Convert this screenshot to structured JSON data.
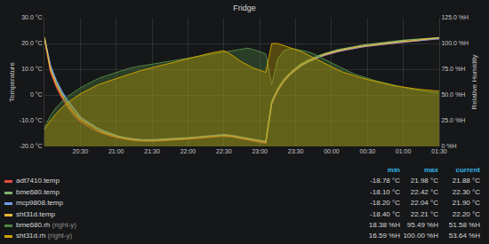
{
  "chart_data": {
    "type": "line",
    "title": "Fridge",
    "y_label": "Temperature",
    "y2_label": "Relative Humidity",
    "grid": true,
    "legend": "bottom",
    "legend_columns": [
      "min",
      "max",
      "current"
    ],
    "legend_y2_label": "(right-y)",
    "categories": [
      null,
      null,
      null,
      null,
      null,
      null,
      "20:30",
      null,
      null,
      null,
      null,
      null,
      "21:00",
      null,
      null,
      null,
      null,
      null,
      "21:30",
      null,
      null,
      null,
      null,
      null,
      "22:00",
      null,
      null,
      null,
      null,
      null,
      "22:30",
      null,
      null,
      null,
      null,
      null,
      "23:00",
      null,
      null,
      null,
      null,
      null,
      "23:30",
      null,
      null,
      null,
      null,
      null,
      "00:00",
      null,
      null,
      null,
      null,
      null,
      "00:30",
      null,
      null,
      null,
      null,
      null,
      "01:00",
      null,
      null,
      null,
      null,
      null,
      "01:30"
    ],
    "ylim": [
      -20,
      30
    ],
    "yticks": [
      {
        "value": -20,
        "label": "-20.0 °C"
      },
      {
        "value": -10,
        "label": "-10.0 °C"
      },
      {
        "value": 0,
        "label": "0 °C"
      },
      {
        "value": 10,
        "label": "10.0 °C"
      },
      {
        "value": 20,
        "label": "20.0 °C"
      },
      {
        "value": 30,
        "label": "30.0 °C"
      }
    ],
    "y2lim": [
      0,
      125
    ],
    "y2ticks": [
      {
        "value": 0,
        "label": "0 %H"
      },
      {
        "value": 25,
        "label": "25.0 %H"
      },
      {
        "value": 50,
        "label": "50.0 %H"
      },
      {
        "value": 75,
        "label": "75.0 %H"
      },
      {
        "value": 100,
        "label": "100.0 %H"
      },
      {
        "value": 125,
        "label": "125.0 %H"
      }
    ],
    "series": [
      {
        "name": "bme680.rh",
        "color": "#508642",
        "axis": "y2",
        "type": "area",
        "legend_order": 5,
        "stats": [
          "18.38 %H",
          "95.49 %H",
          "51.58 %H"
        ],
        "values": [
          18.38,
          30,
          38,
          44,
          49,
          53,
          57,
          60,
          63,
          66,
          68,
          70,
          72,
          74,
          75.5,
          77,
          78,
          79,
          80,
          81,
          82,
          83,
          84,
          85,
          86,
          87,
          88,
          89,
          90,
          91,
          92,
          93,
          94,
          95,
          95.49,
          94,
          92,
          90,
          60,
          85,
          93,
          95,
          94.5,
          93.5,
          92,
          90,
          87,
          84,
          81,
          78,
          75,
          72.5,
          70,
          68,
          66,
          64.5,
          63,
          61.5,
          60,
          58.5,
          57,
          56,
          55,
          54,
          53,
          52.3,
          51.58
        ]
      },
      {
        "name": "sht31d.rh",
        "color": "#cca300",
        "axis": "y2",
        "type": "area",
        "legend_order": 6,
        "stats": [
          "16.59 %H",
          "100.00 %H",
          "53.64 %H"
        ],
        "values": [
          16.59,
          25,
          32,
          38,
          43,
          47,
          51,
          54,
          57,
          60,
          62,
          64,
          66,
          68,
          70,
          72,
          73.5,
          75,
          76.5,
          78,
          79.5,
          81,
          82.5,
          84,
          85.5,
          87,
          88.5,
          90,
          91,
          92,
          93,
          90,
          86,
          82,
          79,
          76,
          74,
          72,
          100,
          100,
          98,
          96,
          94,
          92,
          89,
          86,
          83,
          80,
          77,
          74.5,
          72,
          70,
          68,
          66.5,
          65,
          63.5,
          62,
          60.5,
          59.5,
          58.5,
          57.5,
          56.8,
          56,
          55.3,
          54.7,
          54.1,
          53.64
        ]
      },
      {
        "name": "adt7410.temp",
        "color": "#e24d42",
        "type": "line",
        "legend_order": 1,
        "stats": [
          "-18.78 °C",
          "21.98 °C",
          "21.88 °C"
        ],
        "values": [
          21.98,
          9,
          3,
          -1.5,
          -5,
          -8,
          -10.3,
          -11.8,
          -13.2,
          -14.3,
          -15.2,
          -15.9,
          -16.5,
          -17,
          -17.4,
          -17.7,
          -17.9,
          -18,
          -18,
          -17.9,
          -17.8,
          -17.7,
          -17.6,
          -17.4,
          -17.2,
          -17,
          -16.8,
          -16.6,
          -16.4,
          -16.2,
          -16,
          -16.2,
          -16.6,
          -17,
          -17.4,
          -17.8,
          -18.3,
          -18.78,
          -3.5,
          1.6,
          5.1,
          7.7,
          9.7,
          11.4,
          12.7,
          13.8,
          14.7,
          15.5,
          16.2,
          16.8,
          17.3,
          17.8,
          18.2,
          18.6,
          18.9,
          19.2,
          19.5,
          19.8,
          20,
          20.3,
          20.5,
          20.7,
          20.9,
          21.1,
          21.4,
          21.6,
          21.88
        ]
      },
      {
        "name": "bme680.temp",
        "color": "#7eb26d",
        "type": "line",
        "legend_order": 2,
        "stats": [
          "-18.10 °C",
          "22.42 °C",
          "22.30 °C"
        ],
        "values": [
          22.42,
          11,
          5,
          0.5,
          -3,
          -6,
          -8.7,
          -10.3,
          -11.8,
          -13,
          -14,
          -14.9,
          -15.7,
          -16.3,
          -16.8,
          -17.1,
          -17.3,
          -17.4,
          -17.4,
          -17.3,
          -17.2,
          -17.1,
          -17,
          -16.8,
          -16.6,
          -16.4,
          -16.2,
          -16,
          -15.8,
          -15.6,
          -15.4,
          -15.6,
          -16,
          -16.4,
          -16.8,
          -17.2,
          -17.6,
          -18.1,
          -2.5,
          2.4,
          5.9,
          8.4,
          10.4,
          12.1,
          13.4,
          14.5,
          15.4,
          16.2,
          16.9,
          17.5,
          18,
          18.5,
          18.9,
          19.3,
          19.6,
          19.9,
          20.2,
          20.5,
          20.7,
          21,
          21.2,
          21.4,
          21.6,
          21.8,
          22,
          22.2,
          22.3
        ]
      },
      {
        "name": "mcp9808.temp",
        "color": "#6d9fe8",
        "type": "line",
        "legend_order": 3,
        "stats": [
          "-18.20 °C",
          "22.04 °C",
          "21.90 °C"
        ],
        "values": [
          22.04,
          11.5,
          5.5,
          1,
          -2.5,
          -5.5,
          -8.5,
          -10.2,
          -11.8,
          -13.1,
          -14.2,
          -15.1,
          -15.9,
          -16.5,
          -16.9,
          -17.2,
          -17.4,
          -17.5,
          -17.5,
          -17.4,
          -17.3,
          -17.2,
          -17.1,
          -16.9,
          -16.7,
          -16.5,
          -16.3,
          -16.1,
          -15.9,
          -15.7,
          -15.5,
          -15.7,
          -16.1,
          -16.5,
          -16.9,
          -17.3,
          -17.7,
          -18.2,
          -3.2,
          1.8,
          5.3,
          7.8,
          9.8,
          11.5,
          12.8,
          13.9,
          14.8,
          15.6,
          16.3,
          16.9,
          17.4,
          17.9,
          18.3,
          18.7,
          19,
          19.3,
          19.6,
          19.9,
          20.1,
          20.4,
          20.6,
          20.8,
          21,
          21.2,
          21.5,
          21.7,
          21.9
        ]
      },
      {
        "name": "sht31d.temp",
        "color": "#eab839",
        "type": "line",
        "legend_order": 4,
        "stats": [
          "-18.40 °C",
          "22.21 °C",
          "22.20 °C"
        ],
        "values": [
          22.2,
          10,
          4,
          -0.5,
          -4,
          -7,
          -9.5,
          -11,
          -12.5,
          -13.7,
          -14.7,
          -15.5,
          -16.2,
          -16.7,
          -17.1,
          -17.4,
          -17.6,
          -17.7,
          -17.7,
          -17.6,
          -17.5,
          -17.4,
          -17.3,
          -17.1,
          -16.9,
          -16.7,
          -16.5,
          -16.3,
          -16.1,
          -15.9,
          -15.7,
          -15.9,
          -16.3,
          -16.7,
          -17.1,
          -17.5,
          -17.9,
          -18.4,
          -3,
          2,
          5.5,
          8,
          10,
          11.7,
          13,
          14.1,
          15,
          15.8,
          16.5,
          17.1,
          17.6,
          18.1,
          18.5,
          18.9,
          19.2,
          19.5,
          19.8,
          20.1,
          20.3,
          20.6,
          20.8,
          21,
          21.2,
          21.4,
          21.7,
          21.9,
          22.2
        ]
      }
    ]
  }
}
